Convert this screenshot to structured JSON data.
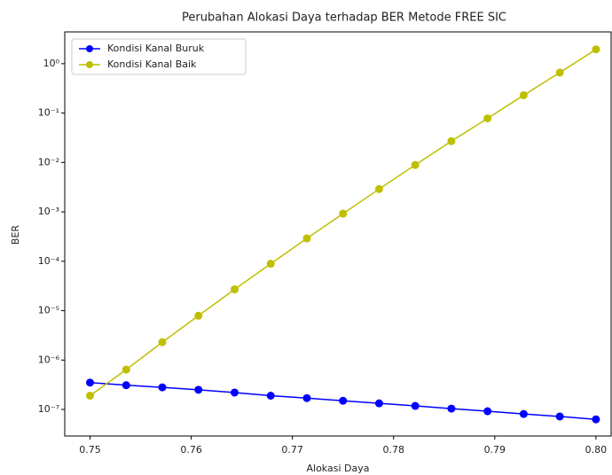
{
  "chart_data": {
    "type": "line",
    "title": "Perubahan Alokasi Daya terhadap BER Metode FREE SIC",
    "xlabel": "Alokasi Daya",
    "ylabel": "BER",
    "x": [
      0.75,
      0.753571,
      0.757143,
      0.760714,
      0.764286,
      0.767857,
      0.771429,
      0.775,
      0.778571,
      0.782143,
      0.785714,
      0.789286,
      0.792857,
      0.796429,
      0.8
    ],
    "series": [
      {
        "name": "Kondisi Kanal Buruk",
        "color": "#0000ff",
        "values": [
          3.5e-07,
          3.1e-07,
          2.8e-07,
          2.5e-07,
          2.2e-07,
          1.9e-07,
          1.7e-07,
          1.5e-07,
          1.33e-07,
          1.18e-07,
          1.04e-07,
          9.2e-08,
          8.1e-08,
          7.2e-08,
          6.3e-08
        ]
      },
      {
        "name": "Kondisi Kanal Baik",
        "color": "#bfbf00",
        "values": [
          1.9e-07,
          6.4e-07,
          2.3e-06,
          7.9e-06,
          2.7e-05,
          8.9e-05,
          0.00029,
          0.00092,
          0.0029,
          0.0089,
          0.027,
          0.078,
          0.23,
          0.66,
          1.95
        ]
      }
    ],
    "xlim": [
      0.7475,
      0.8015
    ],
    "xticks": [
      0.75,
      0.76,
      0.77,
      0.78,
      0.79,
      {
        "value": 0.8,
        "label": "0.80"
      }
    ],
    "ylim": [
      2.9e-08,
      4.4
    ],
    "yscale": "log",
    "yticks": [
      {
        "value": 1e-07,
        "label": "10⁻⁷"
      },
      {
        "value": 1e-06,
        "label": "10⁻⁶"
      },
      {
        "value": 1e-05,
        "label": "10⁻⁵"
      },
      {
        "value": 0.0001,
        "label": "10⁻⁴"
      },
      {
        "value": 0.001,
        "label": "10⁻³"
      },
      {
        "value": 0.01,
        "label": "10⁻²"
      },
      {
        "value": 0.1,
        "label": "10⁻¹"
      },
      {
        "value": 1,
        "label": "10⁰"
      }
    ],
    "legend": "upper left"
  }
}
